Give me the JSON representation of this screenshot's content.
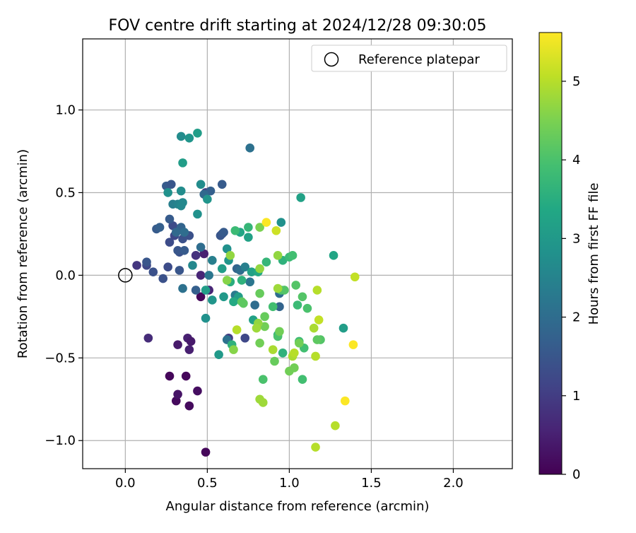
{
  "chart_data": {
    "type": "scatter",
    "title": "FOV centre drift starting at 2024/12/28 09:30:05",
    "xlabel": "Angular distance from reference (arcmin)",
    "ylabel": "Rotation from reference (arcmin)",
    "xlim": [
      -0.26,
      2.36
    ],
    "ylim": [
      -1.17,
      1.43
    ],
    "xticks": [
      0.0,
      0.5,
      1.0,
      1.5,
      2.0
    ],
    "xtick_labels": [
      "0.0",
      "0.5",
      "1.0",
      "1.5",
      "2.0"
    ],
    "yticks": [
      -1.0,
      -0.5,
      0.0,
      0.5,
      1.0
    ],
    "ytick_labels": [
      "−1.0",
      "−0.5",
      "0.0",
      "0.5",
      "1.0"
    ],
    "grid": true,
    "legend": {
      "label": "Reference platepar",
      "placement": "top-right",
      "marker": "open-circle"
    },
    "reference_point": {
      "x": 0.0,
      "y": 0.0
    },
    "colorbar": {
      "label": "Hours from first FF file",
      "colormap": "viridis",
      "range": [
        0,
        5.62
      ],
      "ticks": [
        0,
        1,
        2,
        3,
        4,
        5
      ],
      "tick_labels": [
        "0",
        "1",
        "2",
        "3",
        "4",
        "5"
      ]
    },
    "points": [
      {
        "x": 0.49,
        "y": -1.07,
        "c": 0.1
      },
      {
        "x": 0.27,
        "y": -0.61,
        "c": 0.1
      },
      {
        "x": 0.37,
        "y": -0.61,
        "c": 0.1
      },
      {
        "x": 0.31,
        "y": -0.76,
        "c": 0.15
      },
      {
        "x": 0.39,
        "y": -0.79,
        "c": 0.15
      },
      {
        "x": 0.44,
        "y": -0.7,
        "c": 0.2
      },
      {
        "x": 0.32,
        "y": -0.72,
        "c": 0.3
      },
      {
        "x": 0.32,
        "y": -0.42,
        "c": 0.4
      },
      {
        "x": 0.38,
        "y": -0.38,
        "c": 0.5
      },
      {
        "x": 0.39,
        "y": -0.45,
        "c": 0.5
      },
      {
        "x": 0.4,
        "y": -0.4,
        "c": 0.4
      },
      {
        "x": 0.14,
        "y": -0.38,
        "c": 0.7
      },
      {
        "x": 0.46,
        "y": -0.13,
        "c": 0.1
      },
      {
        "x": 0.46,
        "y": 0.0,
        "c": 0.6
      },
      {
        "x": 0.48,
        "y": 0.13,
        "c": 0.5
      },
      {
        "x": 0.51,
        "y": -0.09,
        "c": 0.6
      },
      {
        "x": 0.43,
        "y": 0.12,
        "c": 0.8
      },
      {
        "x": 0.07,
        "y": 0.06,
        "c": 0.9
      },
      {
        "x": 0.63,
        "y": -0.38,
        "c": 1.0
      },
      {
        "x": 0.73,
        "y": -0.38,
        "c": 1.2
      },
      {
        "x": 0.49,
        "y": 0.5,
        "c": 1.0
      },
      {
        "x": 0.13,
        "y": 0.06,
        "c": 1.2
      },
      {
        "x": 0.26,
        "y": 0.05,
        "c": 1.3
      },
      {
        "x": 0.17,
        "y": 0.02,
        "c": 1.4
      },
      {
        "x": 0.23,
        "y": -0.02,
        "c": 1.4
      },
      {
        "x": 0.33,
        "y": 0.03,
        "c": 1.5
      },
      {
        "x": 0.13,
        "y": 0.08,
        "c": 1.5
      },
      {
        "x": 0.27,
        "y": 0.2,
        "c": 1.3
      },
      {
        "x": 0.3,
        "y": 0.24,
        "c": 1.2
      },
      {
        "x": 0.29,
        "y": 0.3,
        "c": 1.3
      },
      {
        "x": 0.33,
        "y": 0.14,
        "c": 1.4
      },
      {
        "x": 0.35,
        "y": 0.22,
        "c": 1.4
      },
      {
        "x": 0.32,
        "y": 0.15,
        "c": 1.5
      },
      {
        "x": 0.36,
        "y": 0.15,
        "c": 1.6
      },
      {
        "x": 0.39,
        "y": 0.24,
        "c": 1.4
      },
      {
        "x": 0.19,
        "y": 0.28,
        "c": 1.6
      },
      {
        "x": 0.21,
        "y": 0.29,
        "c": 1.7
      },
      {
        "x": 0.27,
        "y": 0.34,
        "c": 1.6
      },
      {
        "x": 0.34,
        "y": 0.29,
        "c": 1.8
      },
      {
        "x": 0.31,
        "y": 0.26,
        "c": 1.9
      },
      {
        "x": 0.36,
        "y": 0.26,
        "c": 2.0
      },
      {
        "x": 0.25,
        "y": 0.54,
        "c": 1.6
      },
      {
        "x": 0.28,
        "y": 0.55,
        "c": 1.5
      },
      {
        "x": 0.59,
        "y": 0.25,
        "c": 1.4
      },
      {
        "x": 0.58,
        "y": 0.24,
        "c": 1.5
      },
      {
        "x": 0.6,
        "y": 0.26,
        "c": 1.6
      },
      {
        "x": 0.59,
        "y": 0.55,
        "c": 1.6
      },
      {
        "x": 0.52,
        "y": 0.51,
        "c": 1.7
      },
      {
        "x": 0.48,
        "y": 0.49,
        "c": 1.9
      },
      {
        "x": 0.43,
        "y": -0.09,
        "c": 1.7
      },
      {
        "x": 0.35,
        "y": -0.08,
        "c": 2.1
      },
      {
        "x": 0.51,
        "y": 0.0,
        "c": 2.2
      },
      {
        "x": 0.46,
        "y": 0.17,
        "c": 2.0
      },
      {
        "x": 0.53,
        "y": 0.09,
        "c": 2.4
      },
      {
        "x": 0.41,
        "y": 0.06,
        "c": 2.6
      },
      {
        "x": 0.62,
        "y": -0.39,
        "c": 2.1
      },
      {
        "x": 0.68,
        "y": 0.04,
        "c": 1.8
      },
      {
        "x": 0.7,
        "y": 0.03,
        "c": 2.0
      },
      {
        "x": 0.73,
        "y": 0.05,
        "c": 2.4
      },
      {
        "x": 0.76,
        "y": -0.04,
        "c": 2.2
      },
      {
        "x": 0.79,
        "y": -0.18,
        "c": 2.0
      },
      {
        "x": 0.94,
        "y": -0.19,
        "c": 1.8
      },
      {
        "x": 0.94,
        "y": -0.11,
        "c": 2.0
      },
      {
        "x": 0.67,
        "y": -0.12,
        "c": 2.3
      },
      {
        "x": 0.76,
        "y": 0.77,
        "c": 2.1
      },
      {
        "x": 0.29,
        "y": 0.43,
        "c": 2.4
      },
      {
        "x": 0.32,
        "y": 0.43,
        "c": 2.5
      },
      {
        "x": 0.35,
        "y": 0.44,
        "c": 2.6
      },
      {
        "x": 0.34,
        "y": 0.42,
        "c": 2.6
      },
      {
        "x": 0.34,
        "y": 0.51,
        "c": 2.7
      },
      {
        "x": 0.26,
        "y": 0.5,
        "c": 2.8
      },
      {
        "x": 0.46,
        "y": 0.55,
        "c": 2.7
      },
      {
        "x": 0.5,
        "y": 0.46,
        "c": 2.9
      },
      {
        "x": 0.44,
        "y": 0.37,
        "c": 2.8
      },
      {
        "x": 0.34,
        "y": 0.84,
        "c": 2.7
      },
      {
        "x": 0.39,
        "y": 0.83,
        "c": 2.9
      },
      {
        "x": 0.44,
        "y": 0.86,
        "c": 3.1
      },
      {
        "x": 0.35,
        "y": 0.68,
        "c": 3.1
      },
      {
        "x": 0.95,
        "y": 0.32,
        "c": 2.8
      },
      {
        "x": 1.07,
        "y": 0.47,
        "c": 3.2
      },
      {
        "x": 1.27,
        "y": 0.12,
        "c": 3.3
      },
      {
        "x": 1.33,
        "y": -0.32,
        "c": 3.1
      },
      {
        "x": 0.49,
        "y": -0.26,
        "c": 2.8
      },
      {
        "x": 0.53,
        "y": -0.15,
        "c": 2.9
      },
      {
        "x": 0.49,
        "y": -0.09,
        "c": 3.1
      },
      {
        "x": 0.57,
        "y": -0.48,
        "c": 3.0
      },
      {
        "x": 0.62,
        "y": 0.16,
        "c": 2.8
      },
      {
        "x": 0.63,
        "y": 0.09,
        "c": 2.9
      },
      {
        "x": 0.59,
        "y": 0.04,
        "c": 3.1
      },
      {
        "x": 0.6,
        "y": -0.13,
        "c": 3.0
      },
      {
        "x": 0.69,
        "y": -0.13,
        "c": 3.1
      },
      {
        "x": 0.7,
        "y": 0.26,
        "c": 3.3
      },
      {
        "x": 0.75,
        "y": 0.23,
        "c": 3.2
      },
      {
        "x": 0.77,
        "y": 0.02,
        "c": 3.2
      },
      {
        "x": 0.78,
        "y": -0.27,
        "c": 3.2
      },
      {
        "x": 0.81,
        "y": 0.02,
        "c": 3.4
      },
      {
        "x": 0.66,
        "y": -0.16,
        "c": 3.4
      },
      {
        "x": 0.64,
        "y": -0.04,
        "c": 3.5
      },
      {
        "x": 0.71,
        "y": -0.03,
        "c": 3.6
      },
      {
        "x": 0.65,
        "y": -0.42,
        "c": 3.6
      },
      {
        "x": 0.93,
        "y": -0.36,
        "c": 3.6
      },
      {
        "x": 0.96,
        "y": -0.47,
        "c": 3.6
      },
      {
        "x": 0.96,
        "y": 0.09,
        "c": 3.6
      },
      {
        "x": 0.75,
        "y": 0.29,
        "c": 3.7
      },
      {
        "x": 0.67,
        "y": 0.27,
        "c": 3.8
      },
      {
        "x": 0.86,
        "y": 0.08,
        "c": 3.7
      },
      {
        "x": 1.0,
        "y": 0.11,
        "c": 3.8
      },
      {
        "x": 1.02,
        "y": 0.12,
        "c": 3.9
      },
      {
        "x": 1.05,
        "y": -0.18,
        "c": 3.8
      },
      {
        "x": 1.06,
        "y": -0.4,
        "c": 3.8
      },
      {
        "x": 1.09,
        "y": -0.44,
        "c": 3.9
      },
      {
        "x": 1.08,
        "y": -0.63,
        "c": 3.9
      },
      {
        "x": 0.9,
        "y": -0.19,
        "c": 3.9
      },
      {
        "x": 0.93,
        "y": -0.37,
        "c": 4.0
      },
      {
        "x": 0.95,
        "y": -0.09,
        "c": 4.0
      },
      {
        "x": 0.97,
        "y": -0.09,
        "c": 4.1
      },
      {
        "x": 0.84,
        "y": -0.63,
        "c": 4.0
      },
      {
        "x": 1.11,
        "y": -0.2,
        "c": 4.0
      },
      {
        "x": 1.08,
        "y": -0.13,
        "c": 4.1
      },
      {
        "x": 1.04,
        "y": -0.06,
        "c": 4.1
      },
      {
        "x": 1.19,
        "y": -0.39,
        "c": 4.1
      },
      {
        "x": 1.17,
        "y": -0.39,
        "c": 4.2
      },
      {
        "x": 0.71,
        "y": -0.16,
        "c": 4.2
      },
      {
        "x": 0.72,
        "y": -0.17,
        "c": 4.2
      },
      {
        "x": 0.82,
        "y": -0.11,
        "c": 4.3
      },
      {
        "x": 0.85,
        "y": -0.25,
        "c": 4.3
      },
      {
        "x": 0.85,
        "y": -0.31,
        "c": 4.4
      },
      {
        "x": 0.91,
        "y": -0.52,
        "c": 4.3
      },
      {
        "x": 0.94,
        "y": -0.34,
        "c": 4.4
      },
      {
        "x": 1.0,
        "y": -0.58,
        "c": 4.4
      },
      {
        "x": 1.03,
        "y": -0.56,
        "c": 4.4
      },
      {
        "x": 1.06,
        "y": -0.41,
        "c": 4.4
      },
      {
        "x": 0.82,
        "y": -0.41,
        "c": 4.4
      },
      {
        "x": 0.82,
        "y": 0.29,
        "c": 4.5
      },
      {
        "x": 0.62,
        "y": -0.03,
        "c": 4.6
      },
      {
        "x": 0.66,
        "y": -0.45,
        "c": 4.6
      },
      {
        "x": 0.64,
        "y": 0.12,
        "c": 4.7
      },
      {
        "x": 0.82,
        "y": 0.04,
        "c": 4.7
      },
      {
        "x": 0.93,
        "y": 0.12,
        "c": 4.7
      },
      {
        "x": 0.81,
        "y": -0.29,
        "c": 4.7
      },
      {
        "x": 0.8,
        "y": -0.32,
        "c": 4.8
      },
      {
        "x": 0.84,
        "y": -0.77,
        "c": 4.8
      },
      {
        "x": 0.82,
        "y": -0.75,
        "c": 4.8
      },
      {
        "x": 0.93,
        "y": -0.08,
        "c": 4.8
      },
      {
        "x": 0.9,
        "y": -0.45,
        "c": 4.9
      },
      {
        "x": 1.02,
        "y": -0.49,
        "c": 4.9
      },
      {
        "x": 1.03,
        "y": -0.47,
        "c": 5.0
      },
      {
        "x": 1.15,
        "y": -0.32,
        "c": 4.9
      },
      {
        "x": 1.16,
        "y": -0.49,
        "c": 5.0
      },
      {
        "x": 1.17,
        "y": -0.09,
        "c": 5.0
      },
      {
        "x": 1.18,
        "y": -0.27,
        "c": 5.1
      },
      {
        "x": 1.16,
        "y": -1.04,
        "c": 5.0
      },
      {
        "x": 1.28,
        "y": -0.91,
        "c": 5.0
      },
      {
        "x": 1.4,
        "y": -0.01,
        "c": 5.1
      },
      {
        "x": 0.92,
        "y": 0.27,
        "c": 5.2
      },
      {
        "x": 0.68,
        "y": -0.33,
        "c": 5.0
      },
      {
        "x": 0.86,
        "y": 0.32,
        "c": 5.6
      },
      {
        "x": 1.39,
        "y": -0.42,
        "c": 5.6
      },
      {
        "x": 1.34,
        "y": -0.76,
        "c": 5.6
      }
    ]
  }
}
